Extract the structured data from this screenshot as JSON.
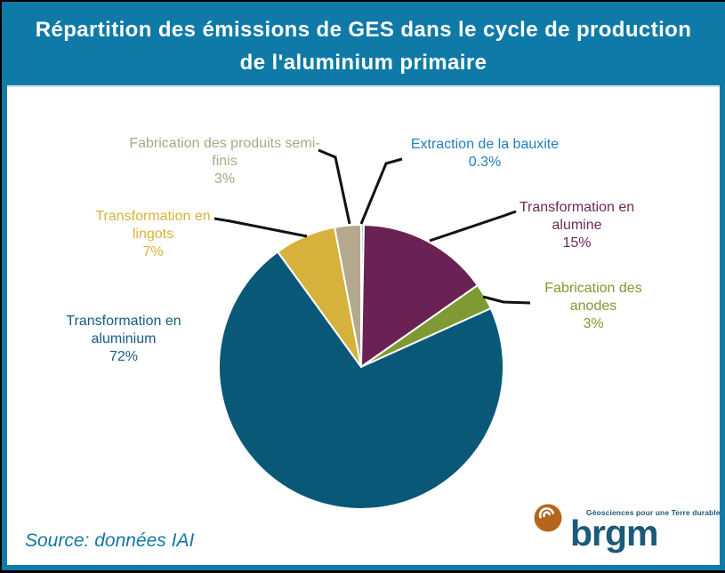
{
  "title": {
    "line1": "Répartition des émissions de GES dans le cycle de production",
    "line2": "de l'aluminium primaire"
  },
  "footer": {
    "source": "Source: données IAI"
  },
  "logo": {
    "wordmark": "brgm",
    "tagline": "Géosciences pour une Terre durable",
    "icon_color": "#b5661c",
    "text_color": "#1b5a78"
  },
  "colors": {
    "frame_teal": "#0f7aa8",
    "background": "#ffffff",
    "leader_line": "#121212"
  },
  "chart_data": {
    "type": "pie",
    "title": "Répartition des émissions de GES dans le cycle de production de l'aluminium primaire",
    "unit": "%",
    "start_angle_deg": -90,
    "direction": "clockwise",
    "legend_position": "outside-callouts",
    "slices": [
      {
        "id": "bauxite",
        "label": "Extraction de la bauxite",
        "value": 0.3,
        "display": "0.3%",
        "color": "#7fcde8",
        "label_color": "#1e7fc2"
      },
      {
        "id": "alumine",
        "label": "Transformation en alumine",
        "value": 15,
        "display": "15%",
        "color": "#6a2254",
        "label_color": "#6d2a57"
      },
      {
        "id": "anodes",
        "label": "Fabrication des anodes",
        "value": 3,
        "display": "3%",
        "color": "#7f9a33",
        "label_color": "#7f9a30"
      },
      {
        "id": "aluminium",
        "label": "Transformation en aluminium",
        "value": 72,
        "display": "72%",
        "color": "#095878",
        "label_color": "#165d82"
      },
      {
        "id": "lingots",
        "label": "Transformation en lingots",
        "value": 7,
        "display": "7%",
        "color": "#d6b23c",
        "label_color": "#d9b23c"
      },
      {
        "id": "semifinis",
        "label": "Fabrication des produits semi-finis",
        "value": 3,
        "display": "3%",
        "color": "#b4a98e",
        "label_color": "#b0a487"
      }
    ]
  }
}
